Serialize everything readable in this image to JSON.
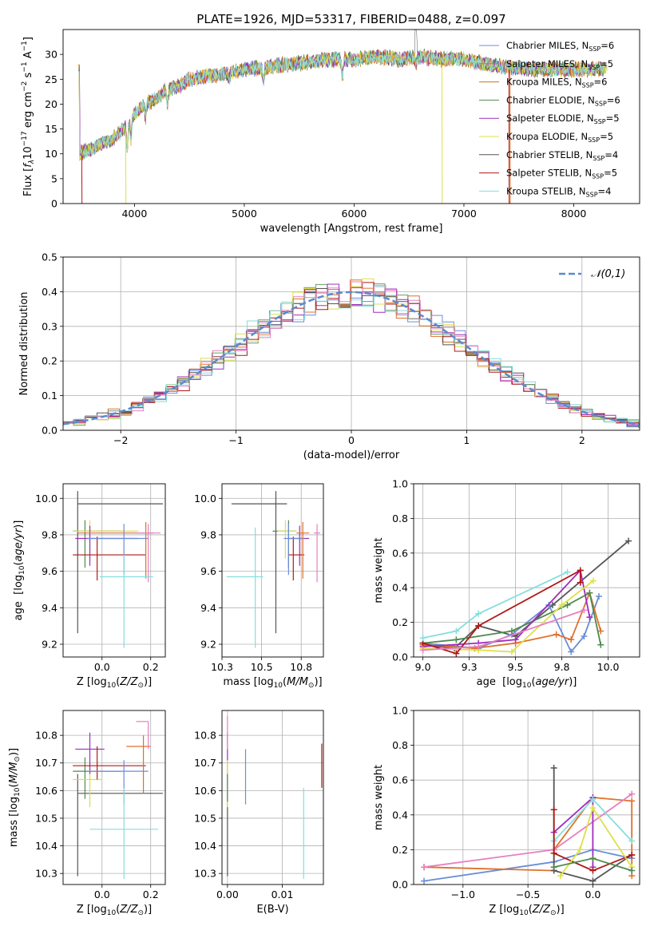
{
  "figure": {
    "title": "PLATE=1926, MJD=53317, FIBERID=0488, z=0.097"
  },
  "palette": [
    "#6a8dd8",
    "#e0702a",
    "#6a9a6a",
    "#a02dbd",
    "#dde04a",
    "#555555",
    "#b01818",
    "#86dede",
    "#e680c0"
  ],
  "chart_data": [
    {
      "id": "spectrum",
      "type": "line",
      "title": "PLATE=1926, MJD=53317, FIBERID=0488, z=0.097",
      "xlabel": "wavelength [Angstrom, rest frame]",
      "ylabel": "Flux [f_λ 10^-17 erg cm^-2 s^-1 A^-1]",
      "xlim": [
        3350,
        8600
      ],
      "ylim": [
        0,
        35
      ],
      "xticks": [
        4000,
        5000,
        6000,
        7000,
        8000
      ],
      "yticks": [
        0,
        5,
        10,
        15,
        20,
        25,
        30
      ],
      "grid": false,
      "legend_position": "top-right",
      "series": [
        {
          "name": "Chabrier MILES, N_SSP=6",
          "color": "#6a8dd8"
        },
        {
          "name": "Salpeter MILES, N_SSP=5",
          "color": "#e0702a"
        },
        {
          "name": "Kroupa MILES, N_SSP=6",
          "color": "#c87818"
        },
        {
          "name": "Chabrier ELODIE, N_SSP=6",
          "color": "#4f8a4f"
        },
        {
          "name": "Salpeter ELODIE, N_SSP=5",
          "color": "#a02dbd"
        },
        {
          "name": "Kroupa ELODIE, N_SSP=5",
          "color": "#dde04a"
        },
        {
          "name": "Chabrier STELIB, N_SSP=4",
          "color": "#555555"
        },
        {
          "name": "Salpeter STELIB, N_SSP=5",
          "color": "#b01818"
        },
        {
          "name": "Kroupa STELIB, N_SSP=4",
          "color": "#86dede"
        }
      ],
      "continuum": {
        "x": [
          3500,
          3600,
          3700,
          3800,
          3900,
          4000,
          4100,
          4200,
          4300,
          4400,
          4500,
          4600,
          4800,
          5000,
          5200,
          5400,
          5600,
          5800,
          6000,
          6200,
          6400,
          6600,
          6800,
          7000,
          7200,
          7400,
          7600,
          7800,
          8000,
          8200,
          8300
        ],
        "y": [
          10,
          11,
          12,
          13,
          15,
          18,
          20,
          21,
          23,
          23.5,
          25,
          25.5,
          26,
          27,
          27.5,
          28,
          28.5,
          29,
          29,
          29.5,
          29,
          29.5,
          29,
          29,
          28,
          27.5,
          27,
          27,
          27,
          27,
          27
        ]
      }
    },
    {
      "id": "residuals",
      "type": "histogram",
      "xlabel": "(data-model)/error",
      "ylabel": "Normed distribution",
      "xlim": [
        -2.5,
        2.5
      ],
      "ylim": [
        0,
        0.5
      ],
      "xticks": [
        -2,
        -1,
        0,
        1,
        2
      ],
      "yticks": [
        0.0,
        0.1,
        0.2,
        0.3,
        0.4,
        0.5
      ],
      "grid": true,
      "legend_position": "top-right",
      "reference_curve": {
        "name": "𝒩(0,1)",
        "color": "#5a8ad0",
        "mean": 0,
        "sigma": 1
      }
    },
    {
      "id": "age_vs_Z",
      "type": "errorbar",
      "xlabel": "Z [log10(Z/Z⊙)]",
      "ylabel": "age [log10(age/yr)]",
      "xlim": [
        -0.16,
        0.26
      ],
      "ylim": [
        9.13,
        10.08
      ],
      "xticks": [
        0.0,
        0.2
      ],
      "yticks": [
        9.2,
        9.4,
        9.6,
        9.8,
        10.0
      ],
      "grid": true,
      "points": [
        {
          "color": "#555555",
          "x": -0.1,
          "xerr": [
            0.0,
            0.35
          ],
          "y": 9.97,
          "yerr": [
            0.71,
            0.07
          ]
        },
        {
          "color": "#4f8a4f",
          "x": -0.07,
          "xerr": [
            0.05,
            0.15
          ],
          "y": 9.82,
          "yerr": [
            0.2,
            0.06
          ]
        },
        {
          "color": "#dde04a",
          "x": -0.05,
          "xerr": [
            0.07,
            0.2
          ],
          "y": 9.82,
          "yerr": [
            0.15,
            0.06
          ]
        },
        {
          "color": "#a02dbd",
          "x": -0.05,
          "xerr": [
            0.06,
            0.2
          ],
          "y": 9.78,
          "yerr": [
            0.15,
            0.07
          ]
        },
        {
          "color": "#b01818",
          "x": -0.02,
          "xerr": [
            0.1,
            0.2
          ],
          "y": 9.69,
          "yerr": [
            0.14,
            0.1
          ]
        },
        {
          "color": "#6a8dd8",
          "x": 0.09,
          "xerr": [
            0.15,
            0.1
          ],
          "y": 9.78,
          "yerr": [
            0.2,
            0.08
          ]
        },
        {
          "color": "#e0702a",
          "x": 0.18,
          "xerr": [
            0.28,
            0.03
          ],
          "y": 9.81,
          "yerr": [
            0.25,
            0.06
          ]
        },
        {
          "color": "#e680c0",
          "x": 0.19,
          "xerr": [
            0.05,
            0.05
          ],
          "y": 9.81,
          "yerr": [
            0.27,
            0.05
          ]
        },
        {
          "color": "#86dede",
          "x": 0.09,
          "xerr": [
            0.1,
            0.12
          ],
          "y": 9.57,
          "yerr": [
            0.39,
            0.12
          ]
        }
      ]
    },
    {
      "id": "age_vs_mass",
      "type": "errorbar",
      "xlabel": "mass [log10(M/M⊙)]",
      "ylabel": "",
      "xlim": [
        10.25,
        10.89
      ],
      "ylim": [
        9.13,
        10.08
      ],
      "xticks": [
        10.25,
        10.5,
        10.75
      ],
      "yticks": [
        9.2,
        9.4,
        9.6,
        9.8,
        10.0
      ],
      "grid": true,
      "points": [
        {
          "color": "#555555",
          "x": 10.59,
          "xerr": [
            0.28,
            0.07
          ],
          "y": 9.97,
          "yerr": [
            0.71,
            0.07
          ]
        },
        {
          "color": "#4f8a4f",
          "x": 10.67,
          "xerr": [
            0.1,
            0.05
          ],
          "y": 9.82,
          "yerr": [
            0.2,
            0.06
          ]
        },
        {
          "color": "#dde04a",
          "x": 10.65,
          "xerr": [
            0.05,
            0.07
          ],
          "y": 9.82,
          "yerr": [
            0.15,
            0.06
          ]
        },
        {
          "color": "#a02dbd",
          "x": 10.74,
          "xerr": [
            0.07,
            0.06
          ],
          "y": 9.78,
          "yerr": [
            0.15,
            0.07
          ]
        },
        {
          "color": "#b01818",
          "x": 10.7,
          "xerr": [
            0.03,
            0.07
          ],
          "y": 9.69,
          "yerr": [
            0.14,
            0.1
          ]
        },
        {
          "color": "#6a8dd8",
          "x": 10.67,
          "xerr": [
            0.03,
            0.1
          ],
          "y": 9.78,
          "yerr": [
            0.2,
            0.08
          ]
        },
        {
          "color": "#e0702a",
          "x": 10.76,
          "xerr": [
            0.04,
            0.04
          ],
          "y": 9.81,
          "yerr": [
            0.25,
            0.06
          ]
        },
        {
          "color": "#e680c0",
          "x": 10.85,
          "xerr": [
            0.02,
            0.02
          ],
          "y": 9.81,
          "yerr": [
            0.27,
            0.05
          ]
        },
        {
          "color": "#86dede",
          "x": 10.46,
          "xerr": [
            0.18,
            0.05
          ],
          "y": 9.57,
          "yerr": [
            0.39,
            0.27
          ]
        }
      ]
    },
    {
      "id": "weight_vs_age",
      "type": "line",
      "xlabel": "age [log10(age/yr)]",
      "ylabel": "mass weight",
      "xlim": [
        8.95,
        10.17
      ],
      "ylim": [
        0,
        1.0
      ],
      "xticks": [
        9.0,
        9.25,
        9.5,
        9.75,
        10.0
      ],
      "yticks": [
        0.0,
        0.2,
        0.4,
        0.6,
        0.8,
        1.0
      ],
      "grid": true,
      "series": [
        {
          "color": "#555555",
          "x": [
            9.0,
            9.17,
            9.3,
            9.5,
            9.7,
            10.11
          ],
          "y": [
            0.07,
            0.05,
            0.18,
            0.12,
            0.3,
            0.67
          ]
        },
        {
          "color": "#6a8dd8",
          "x": [
            9.0,
            9.3,
            9.48,
            9.68,
            9.8,
            9.87,
            9.95
          ],
          "y": [
            0.08,
            0.05,
            0.13,
            0.3,
            0.03,
            0.12,
            0.35
          ]
        },
        {
          "color": "#e0702a",
          "x": [
            9.0,
            9.28,
            9.5,
            9.72,
            9.8,
            9.9,
            9.96
          ],
          "y": [
            0.07,
            0.05,
            0.08,
            0.13,
            0.1,
            0.37,
            0.15
          ]
        },
        {
          "color": "#4f8a4f",
          "x": [
            9.0,
            9.18,
            9.48,
            9.78,
            9.9,
            9.96
          ],
          "y": [
            0.08,
            0.1,
            0.15,
            0.3,
            0.37,
            0.07
          ]
        },
        {
          "color": "#a02dbd",
          "x": [
            9.0,
            9.3,
            9.5,
            9.85,
            9.9
          ],
          "y": [
            0.06,
            0.08,
            0.1,
            0.5,
            0.23
          ]
        },
        {
          "color": "#dde04a",
          "x": [
            9.0,
            9.3,
            9.48,
            9.75,
            9.92
          ],
          "y": [
            0.05,
            0.04,
            0.03,
            0.3,
            0.44
          ]
        },
        {
          "color": "#b01818",
          "x": [
            9.0,
            9.18,
            9.3,
            9.85,
            9.85
          ],
          "y": [
            0.08,
            0.02,
            0.18,
            0.5,
            0.43
          ]
        },
        {
          "color": "#86dede",
          "x": [
            9.0,
            9.18,
            9.3,
            9.78
          ],
          "y": [
            0.11,
            0.15,
            0.25,
            0.49
          ]
        },
        {
          "color": "#e680c0",
          "x": [
            9.0,
            9.3,
            9.87
          ],
          "y": [
            0.04,
            0.06,
            0.27
          ]
        }
      ]
    },
    {
      "id": "mass_vs_Z",
      "type": "errorbar",
      "xlabel": "Z [log10(Z/Z⊙)]",
      "ylabel": "mass [log10(M/M⊙)]",
      "xlim": [
        -0.16,
        0.26
      ],
      "ylim": [
        10.26,
        10.89
      ],
      "xticks": [
        0.0,
        0.2
      ],
      "yticks": [
        10.3,
        10.4,
        10.5,
        10.6,
        10.7,
        10.8
      ],
      "grid": true,
      "points": [
        {
          "color": "#555555",
          "x": -0.1,
          "xerr": [
            0.0,
            0.35
          ],
          "y": 10.59,
          "yerr": [
            0.3,
            0.07
          ]
        },
        {
          "color": "#4f8a4f",
          "x": -0.07,
          "xerr": [
            0.05,
            0.15
          ],
          "y": 10.67,
          "yerr": [
            0.1,
            0.05
          ]
        },
        {
          "color": "#dde04a",
          "x": -0.05,
          "xerr": [
            0.07,
            0.05
          ],
          "y": 10.64,
          "yerr": [
            0.1,
            0.07
          ]
        },
        {
          "color": "#a02dbd",
          "x": -0.05,
          "xerr": [
            0.06,
            0.06
          ],
          "y": 10.75,
          "yerr": [
            0.09,
            0.06
          ]
        },
        {
          "color": "#b01818",
          "x": -0.02,
          "xerr": [
            0.1,
            0.2
          ],
          "y": 10.69,
          "yerr": [
            0.05,
            0.07
          ]
        },
        {
          "color": "#6a8dd8",
          "x": 0.09,
          "xerr": [
            0.15,
            0.1
          ],
          "y": 10.67,
          "yerr": [
            0.12,
            0.04
          ]
        },
        {
          "color": "#e0702a",
          "x": 0.17,
          "xerr": [
            0.07,
            0.03
          ],
          "y": 10.76,
          "yerr": [
            0.17,
            0.04
          ]
        },
        {
          "color": "#e680c0",
          "x": 0.19,
          "xerr": [
            0.05,
            0.0
          ],
          "y": 10.85,
          "yerr": [
            0.1,
            0.0
          ]
        },
        {
          "color": "#86dede",
          "x": 0.09,
          "xerr": [
            0.14,
            0.14
          ],
          "y": 10.46,
          "yerr": [
            0.18,
            0.15
          ]
        }
      ]
    },
    {
      "id": "mass_vs_ebv",
      "type": "errorbar",
      "xlabel": "E(B-V)",
      "ylabel": "",
      "xlim": [
        -0.001,
        0.0175
      ],
      "ylim": [
        10.26,
        10.89
      ],
      "xticks": [
        0.0,
        0.01
      ],
      "xticklabels": [
        "0.00",
        "0.01"
      ],
      "yticks": [
        10.3,
        10.4,
        10.5,
        10.6,
        10.7,
        10.8
      ],
      "grid": true,
      "points": [
        {
          "color": "#555555",
          "x": 0.0,
          "y": 10.59,
          "yerr": [
            0.3,
            0.07
          ]
        },
        {
          "color": "#a02dbd",
          "x": 0.0,
          "y": 10.75,
          "yerr": [
            0.09,
            0.06
          ]
        },
        {
          "color": "#e680c0",
          "x": 0.0,
          "y": 10.82,
          "yerr": [
            0.07,
            0.05
          ]
        },
        {
          "color": "#dde04a",
          "x": 0.0,
          "y": 10.64,
          "yerr": [
            0.1,
            0.07
          ]
        },
        {
          "color": "#4f8a4f",
          "x": 0.0,
          "y": 10.62,
          "yerr": [
            0.06,
            0.04
          ]
        },
        {
          "color": "#6a8dd8",
          "x": 0.0033,
          "y": 10.65,
          "yerr": [
            0.1,
            0.1
          ]
        },
        {
          "color": "#86dede",
          "x": 0.0139,
          "y": 10.45,
          "yerr": [
            0.17,
            0.16
          ]
        },
        {
          "color": "#b01818",
          "x": 0.0172,
          "y": 10.69,
          "yerr": [
            0.08,
            0.08
          ]
        }
      ]
    },
    {
      "id": "weight_vs_Z",
      "type": "line",
      "xlabel": "Z [log10(Z/Z⊙)]",
      "ylabel": "mass weight",
      "xlim": [
        -1.38,
        0.36
      ],
      "ylim": [
        0,
        1.0
      ],
      "xticks": [
        -1.0,
        -0.5,
        0.0
      ],
      "xticklabels": [
        "−1.0",
        "−0.5",
        "0.0"
      ],
      "yticks": [
        0.0,
        0.2,
        0.4,
        0.6,
        0.8,
        1.0
      ],
      "grid": true,
      "series": [
        {
          "color": "#6a8dd8",
          "x": [
            -1.3,
            -0.3,
            0.0,
            0.3
          ],
          "y": [
            0.02,
            0.13,
            0.2,
            0.15
          ]
        },
        {
          "color": "#e0702a",
          "x": [
            -1.3,
            -0.3,
            -0.3,
            0.0,
            0.3,
            0.3
          ],
          "y": [
            0.1,
            0.08,
            0.2,
            0.5,
            0.48,
            0.05
          ]
        },
        {
          "color": "#e680c0",
          "x": [
            -1.3,
            -0.3,
            0.3
          ],
          "y": [
            0.1,
            0.2,
            0.52
          ]
        },
        {
          "color": "#555555",
          "x": [
            -0.3,
            -0.3,
            0.0,
            0.3
          ],
          "y": [
            0.67,
            0.08,
            0.02,
            0.17
          ]
        },
        {
          "color": "#a02dbd",
          "x": [
            -0.3,
            0.0,
            0.0
          ],
          "y": [
            0.3,
            0.5,
            0.1
          ]
        },
        {
          "color": "#86dede",
          "x": [
            -0.3,
            0.0,
            0.3
          ],
          "y": [
            0.25,
            0.49,
            0.25
          ]
        },
        {
          "color": "#b01818",
          "x": [
            -0.3,
            -0.3,
            0.0,
            0.3
          ],
          "y": [
            0.43,
            0.18,
            0.08,
            0.17
          ]
        },
        {
          "color": "#dde04a",
          "x": [
            -0.25,
            -0.1,
            0.0,
            0.3
          ],
          "y": [
            0.05,
            0.2,
            0.44,
            0.1
          ]
        },
        {
          "color": "#4f8a4f",
          "x": [
            -0.3,
            0.0,
            0.3
          ],
          "y": [
            0.1,
            0.15,
            0.08
          ]
        }
      ]
    }
  ]
}
